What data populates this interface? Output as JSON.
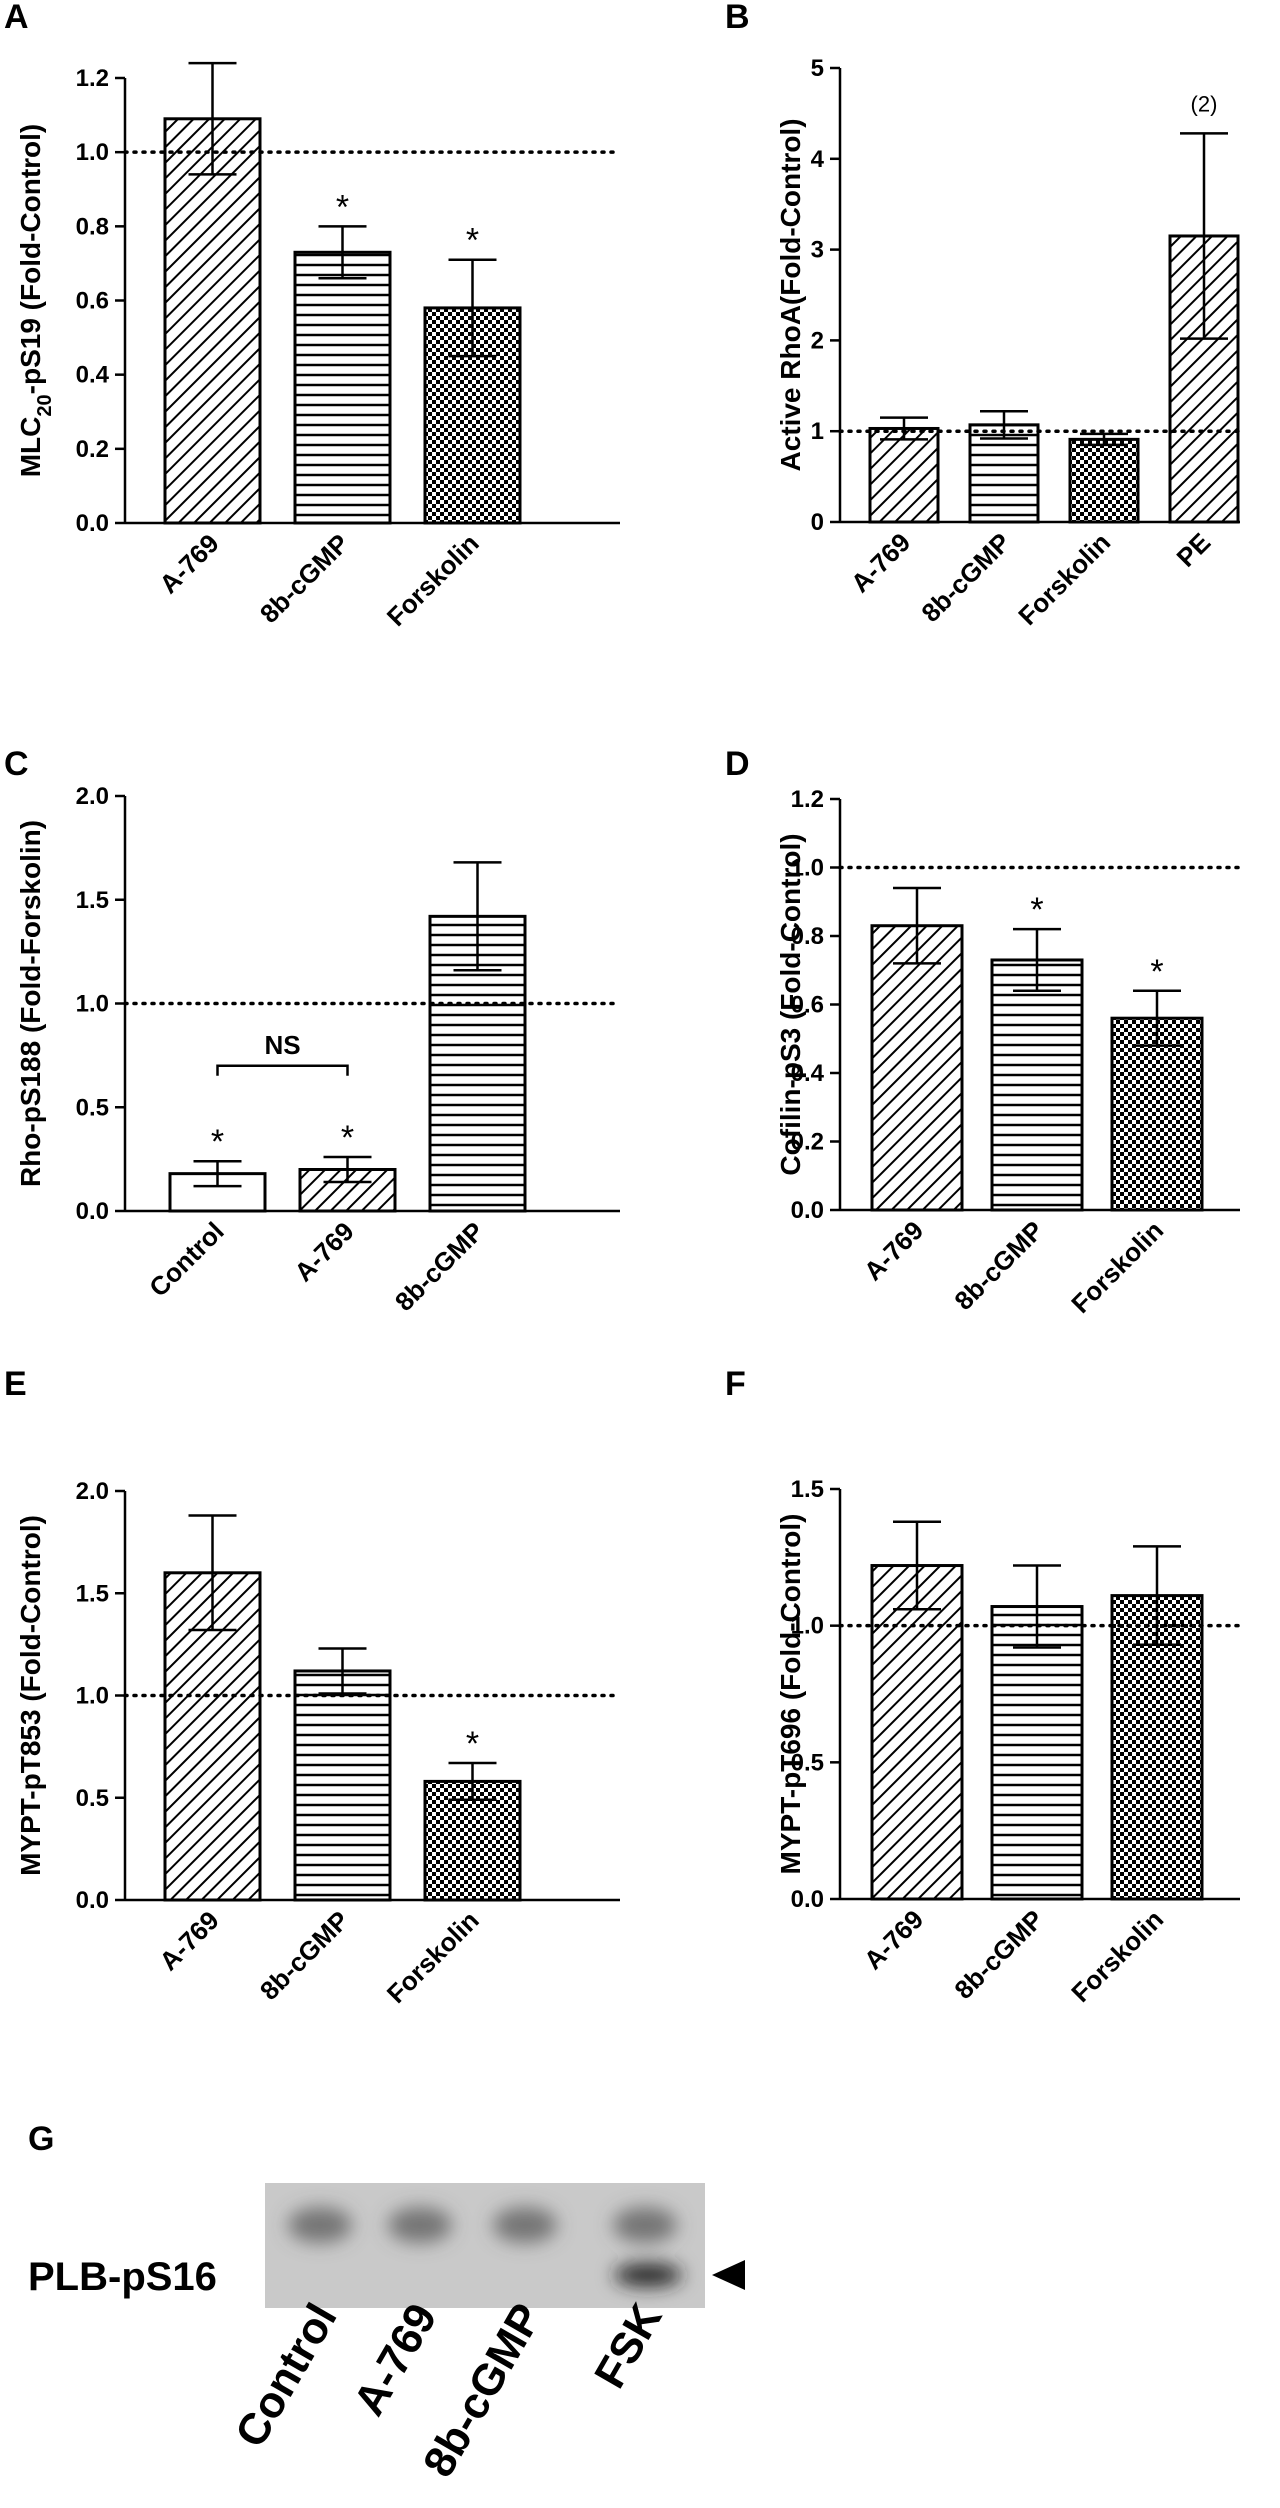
{
  "chart_data": [
    {
      "panel": "A",
      "type": "bar",
      "ylabel_prefix": "MLC",
      "ylabel_sub": "20",
      "ylabel_suffix": "-pS19 (Fold-Control)",
      "categories": [
        "A-769",
        "8b-cGMP",
        "Forskolin"
      ],
      "values": [
        1.09,
        0.73,
        0.58
      ],
      "errors": [
        0.15,
        0.07,
        0.13
      ],
      "patterns": [
        "diag",
        "horiz",
        "check"
      ],
      "annotations": [
        "",
        "*",
        "*"
      ],
      "ylim": [
        0,
        1.2
      ],
      "ticks": [
        "0.0",
        "0.2",
        "0.4",
        "0.6",
        "0.8",
        "1.0",
        "1.2"
      ],
      "reference_line": 1.0
    },
    {
      "panel": "B",
      "type": "bar",
      "ylabel": "Active RhoA(Fold-Control)",
      "categories": [
        "A-769",
        "8b-cGMP",
        "Forskolin",
        "PE"
      ],
      "values": [
        1.03,
        1.07,
        0.91,
        3.15
      ],
      "errors": [
        0.12,
        0.15,
        0.06,
        1.13
      ],
      "patterns": [
        "diag",
        "horiz",
        "check",
        "diag"
      ],
      "annotations": [
        "",
        "",
        "",
        "(2)"
      ],
      "ylim": [
        0,
        5
      ],
      "ticks": [
        "0",
        "1",
        "2",
        "3",
        "4",
        "5"
      ],
      "reference_line": 1.0
    },
    {
      "panel": "C",
      "type": "bar",
      "ylabel": "Rho-pS188 (Fold-Forskolin)",
      "categories": [
        "Control",
        "A-769",
        "8b-cGMP"
      ],
      "values": [
        0.18,
        0.2,
        1.42
      ],
      "errors": [
        0.06,
        0.06,
        0.26
      ],
      "patterns": [
        "none",
        "diag",
        "horiz"
      ],
      "annotations": [
        "*",
        "*",
        ""
      ],
      "ylim": [
        0,
        2.0
      ],
      "ticks": [
        "0.0",
        "0.5",
        "1.0",
        "1.5",
        "2.0"
      ],
      "reference_line": 1.0,
      "bracket_label": "NS"
    },
    {
      "panel": "D",
      "type": "bar",
      "ylabel": "Cofilin-pS3 (Fold-Control)",
      "categories": [
        "A-769",
        "8b-cGMP",
        "Forskolin"
      ],
      "values": [
        0.83,
        0.73,
        0.56
      ],
      "errors": [
        0.11,
        0.09,
        0.08
      ],
      "patterns": [
        "diag",
        "horiz",
        "check"
      ],
      "annotations": [
        "",
        "*",
        "*"
      ],
      "ylim": [
        0,
        1.2
      ],
      "ticks": [
        "0.0",
        "0.2",
        "0.4",
        "0.6",
        "0.8",
        "1.0",
        "1.2"
      ],
      "reference_line": 1.0
    },
    {
      "panel": "E",
      "type": "bar",
      "ylabel": "MYPT-pT853 (Fold-Control)",
      "categories": [
        "A-769",
        "8b-cGMP",
        "Forskolin"
      ],
      "values": [
        1.6,
        1.12,
        0.58
      ],
      "errors": [
        0.28,
        0.11,
        0.09
      ],
      "patterns": [
        "diag",
        "horiz",
        "check"
      ],
      "annotations": [
        "",
        "",
        "*"
      ],
      "ylim": [
        0,
        2.0
      ],
      "ticks": [
        "0.0",
        "0.5",
        "1.0",
        "1.5",
        "2.0"
      ],
      "reference_line": 1.0
    },
    {
      "panel": "F",
      "type": "bar",
      "ylabel": "MYPT-pT696 (Fold-Control)",
      "categories": [
        "A-769",
        "8b-cGMP",
        "Forskolin"
      ],
      "values": [
        1.22,
        1.07,
        1.11
      ],
      "errors": [
        0.16,
        0.15,
        0.18
      ],
      "patterns": [
        "diag",
        "horiz",
        "check"
      ],
      "annotations": [
        "",
        "",
        ""
      ],
      "ylim": [
        0,
        1.5
      ],
      "ticks": [
        "0.0",
        "0.5",
        "1.0",
        "1.5"
      ],
      "reference_line": 1.0
    }
  ],
  "blot": {
    "panel": "G",
    "label": "PLB-pS16",
    "lanes": [
      "Control",
      "A-769",
      "8b-cGMP",
      "FSK"
    ],
    "background_color": "#c9c9c9",
    "band_color": "#5a5a5a"
  }
}
